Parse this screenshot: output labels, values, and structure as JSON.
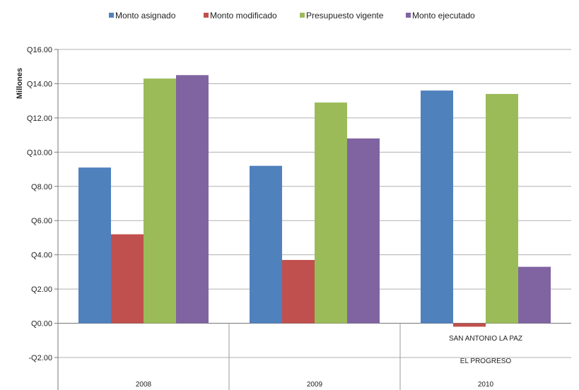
{
  "chart_data": {
    "type": "bar",
    "categories": [
      "2008",
      "2009",
      "2010"
    ],
    "category_sublabels": [
      "",
      "",
      "SAN ANTONIO LA PAZ"
    ],
    "category_group_label": [
      "",
      "",
      "EL PROGRESO"
    ],
    "ylabel": "Millones",
    "ylim": [
      -2,
      16
    ],
    "yticks": [
      "-Q2.00",
      "Q0.00",
      "Q2.00",
      "Q4.00",
      "Q6.00",
      "Q8.00",
      "Q10.00",
      "Q12.00",
      "Q14.00",
      "Q16.00"
    ],
    "grid": true,
    "legend_position": "top",
    "series": [
      {
        "name": "Monto asignado",
        "color": "#4f81bd",
        "values": [
          9.1,
          9.2,
          13.6
        ]
      },
      {
        "name": "Monto modificado",
        "color": "#c0504d",
        "values": [
          5.2,
          3.7,
          -0.2
        ]
      },
      {
        "name": "Presupuesto vigente",
        "color": "#9bbb59",
        "values": [
          14.3,
          12.9,
          13.4
        ]
      },
      {
        "name": "Monto ejecutado",
        "color": "#8064a2",
        "values": [
          14.5,
          10.8,
          3.3
        ]
      }
    ]
  }
}
